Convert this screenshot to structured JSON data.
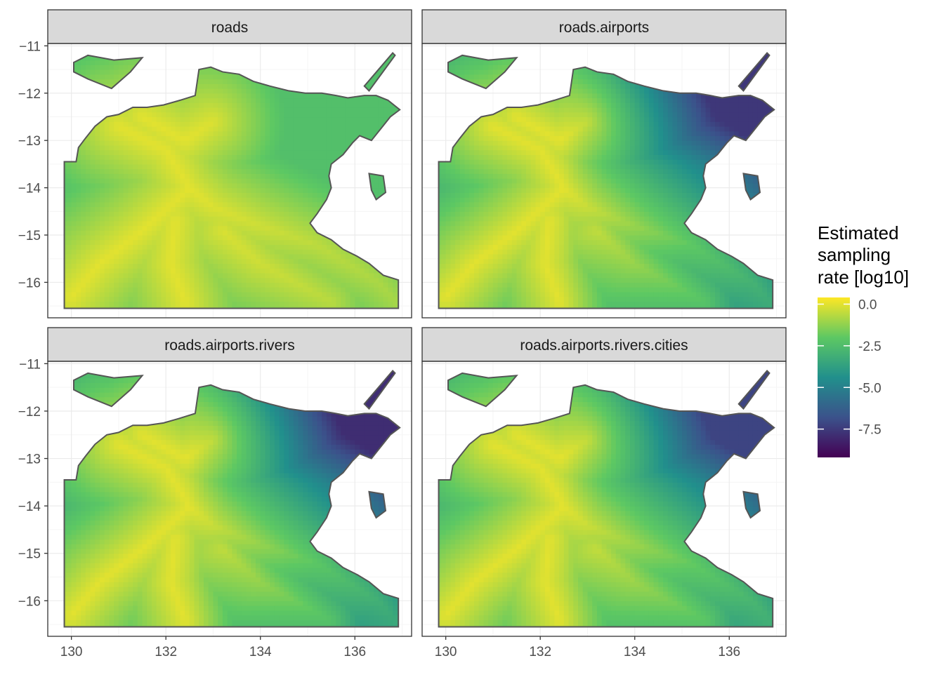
{
  "panels": [
    {
      "strip": "roads",
      "min_value": -2.4
    },
    {
      "strip": "roads.airports",
      "min_value": -7.6
    },
    {
      "strip": "roads.airports.rivers",
      "min_value": -7.9
    },
    {
      "strip": "roads.airports.rivers.cities",
      "min_value": -7.2
    }
  ],
  "axes": {
    "x_ticks": [
      130,
      132,
      134,
      136
    ],
    "y_ticks": [
      -11,
      -12,
      -13,
      -14,
      -15,
      -16
    ],
    "x_range": [
      129.5,
      137.2
    ],
    "y_range": [
      -16.75,
      -10.95
    ]
  },
  "legend": {
    "title": [
      "Estimated",
      "sampling",
      "rate [log10]"
    ],
    "breaks": [
      "0.0",
      "-2.5",
      "-5.0",
      "-7.5"
    ],
    "break_values": [
      0,
      -2.5,
      -5,
      -7.5
    ],
    "range": [
      -9.2,
      0.4
    ],
    "colors": [
      "#440154",
      "#3B528B",
      "#21908C",
      "#5DC863",
      "#FDE725"
    ]
  },
  "colors": {
    "strip_fill": "#D9D9D9",
    "land_border": "#555555",
    "grid_major": "#EBEBEB",
    "grid_minor": "#F5F5F5",
    "panel_border": "#333333"
  }
}
